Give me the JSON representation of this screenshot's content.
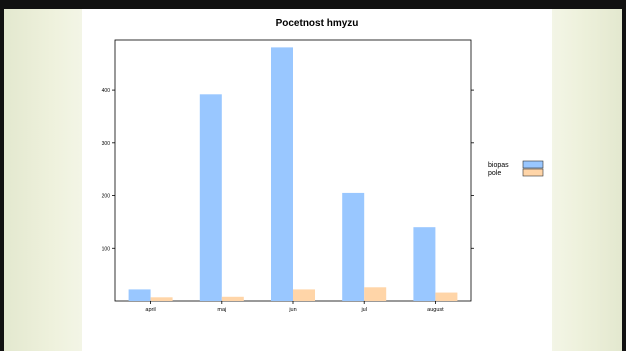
{
  "chart_data": {
    "type": "bar",
    "title": "Pocetnost hmyzu",
    "categories": [
      "april",
      "maj",
      "jun",
      "jul",
      "august"
    ],
    "series": [
      {
        "name": "biopas",
        "color": "#99c7ff",
        "values": [
          22,
          392,
          481,
          205,
          140
        ]
      },
      {
        "name": "pole",
        "color": "#ffd5a8",
        "values": [
          7,
          8,
          22,
          26,
          16
        ]
      }
    ],
    "yticks": [
      "100",
      "200",
      "300",
      "400"
    ],
    "ylim": [
      0,
      495
    ],
    "grid": false,
    "legend": "right"
  }
}
